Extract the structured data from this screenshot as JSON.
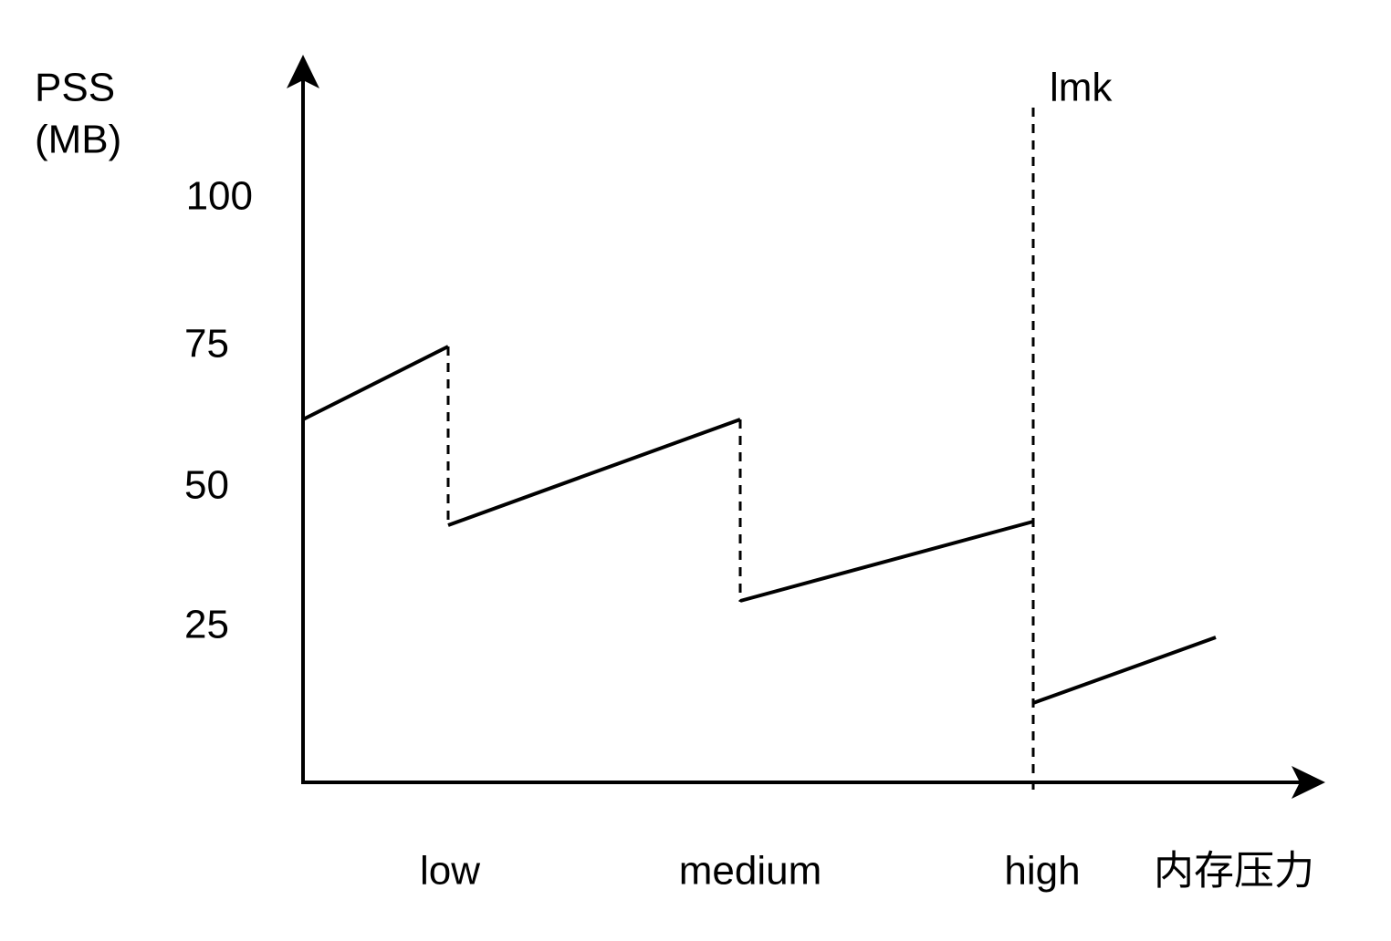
{
  "y_axis": {
    "title_lines": [
      "PSS",
      "(MB)"
    ],
    "ticks": [
      "100",
      "75",
      "50",
      "25"
    ]
  },
  "x_axis": {
    "categories": [
      "low",
      "medium",
      "high"
    ],
    "title": "内存压力"
  },
  "annotation": "lmk"
}
